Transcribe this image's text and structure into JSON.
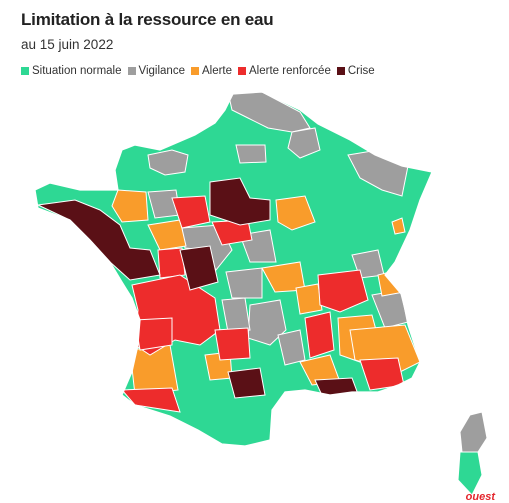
{
  "title": "Limitation à la ressource en eau",
  "subtitle": "au 15 juin 2022",
  "legend": [
    {
      "label": "Situation normale",
      "color": "#2ed894"
    },
    {
      "label": "Vigilance",
      "color": "#9e9e9e"
    },
    {
      "label": "Alerte",
      "color": "#f99c2b"
    },
    {
      "label": "Alerte renforcée",
      "color": "#ed2c2c"
    },
    {
      "label": "Crise",
      "color": "#5a1016"
    }
  ],
  "brand": "ouest",
  "brand_color": "#e3262d",
  "colors": {
    "normal": "#2ed894",
    "vigilance": "#9e9e9e",
    "alerte": "#f99c2b",
    "renforcee": "#ed2c2c",
    "crise": "#5a1016"
  }
}
